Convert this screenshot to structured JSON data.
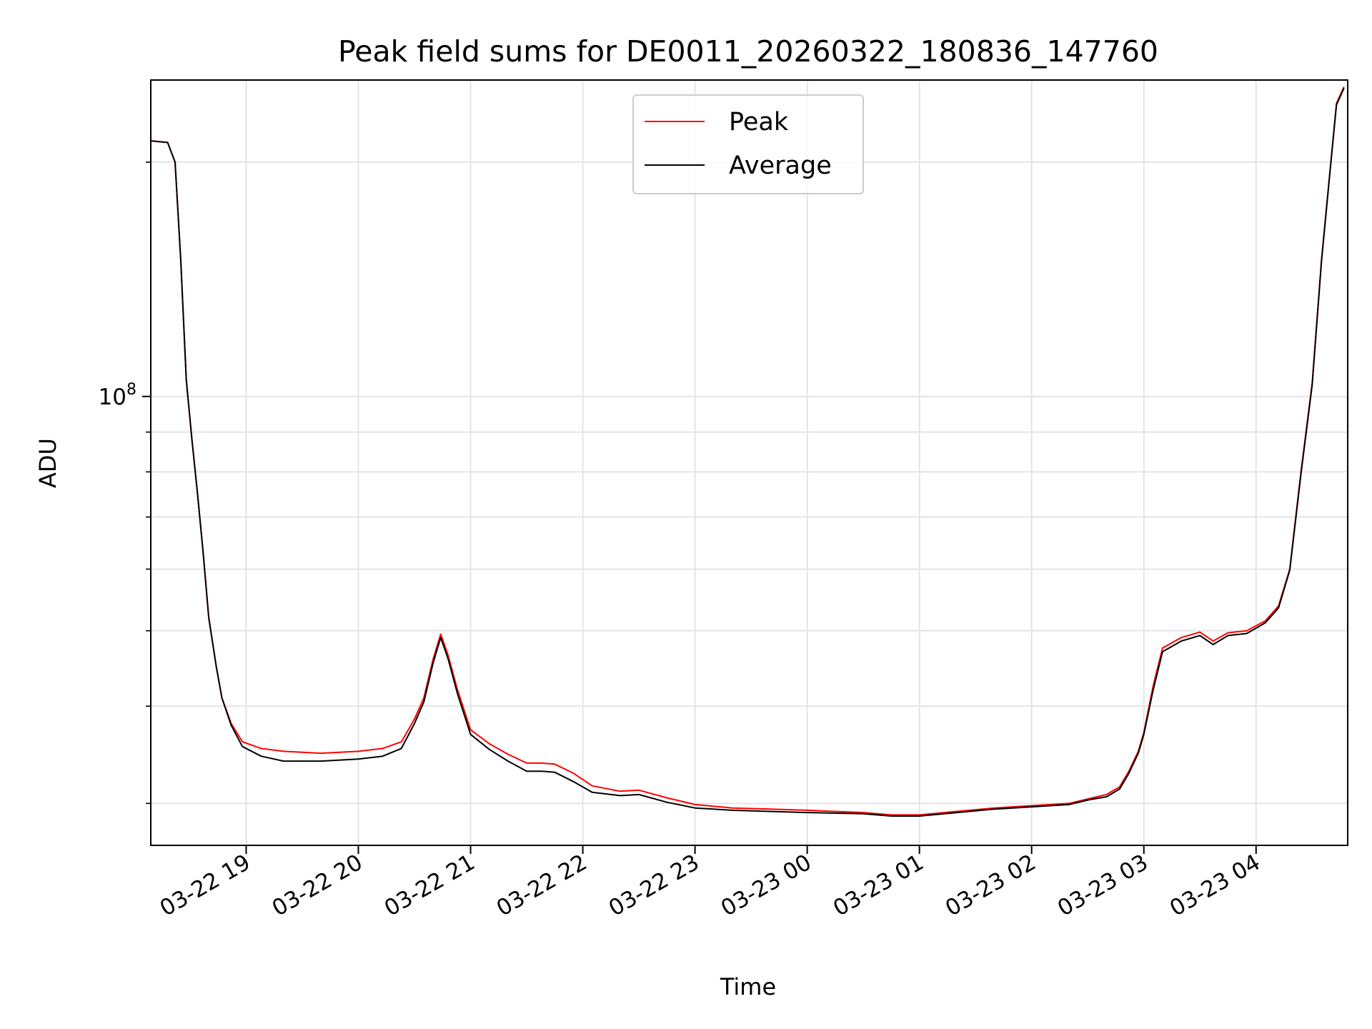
{
  "chart_data": {
    "type": "line",
    "title": "Peak field sums for DE0011_20260322_180836_147760",
    "xlabel": "Time",
    "ylabel": "ADU",
    "yscale": "log",
    "xlim": [
      "2026-03-22 18:09",
      "2026-03-23 04:49"
    ],
    "ylim": [
      26500000,
      255000000
    ],
    "grid": true,
    "legend_position": "upper center",
    "x_ticks": [
      "03-22 19",
      "03-22 20",
      "03-22 21",
      "03-22 22",
      "03-22 23",
      "03-23 00",
      "03-23 01",
      "03-23 02",
      "03-23 03",
      "03-23 04"
    ],
    "y_ticks": [
      {
        "value": 100000000,
        "base": "10",
        "exp": "8"
      }
    ],
    "colors": {
      "Peak": "#ff0000",
      "Average": "#000000"
    },
    "x": [
      "2026-03-22 18:09",
      "2026-03-22 18:18",
      "2026-03-22 18:22",
      "2026-03-22 18:25",
      "2026-03-22 18:28",
      "2026-03-22 18:31",
      "2026-03-22 18:34",
      "2026-03-22 18:37",
      "2026-03-22 18:40",
      "2026-03-22 18:44",
      "2026-03-22 18:47",
      "2026-03-22 18:52",
      "2026-03-22 18:58",
      "2026-03-22 19:08",
      "2026-03-22 19:20",
      "2026-03-22 19:40",
      "2026-03-22 20:00",
      "2026-03-22 20:13",
      "2026-03-22 20:23",
      "2026-03-22 20:30",
      "2026-03-22 20:35",
      "2026-03-22 20:40",
      "2026-03-22 20:44",
      "2026-03-22 20:48",
      "2026-03-22 20:53",
      "2026-03-22 21:00",
      "2026-03-22 21:10",
      "2026-03-22 21:20",
      "2026-03-22 21:30",
      "2026-03-22 21:38",
      "2026-03-22 21:45",
      "2026-03-22 21:55",
      "2026-03-22 22:05",
      "2026-03-22 22:20",
      "2026-03-22 22:30",
      "2026-03-22 22:45",
      "2026-03-22 23:00",
      "2026-03-22 23:20",
      "2026-03-22 23:40",
      "2026-03-23 00:00",
      "2026-03-23 00:30",
      "2026-03-23 00:45",
      "2026-03-23 01:00",
      "2026-03-23 01:20",
      "2026-03-23 01:40",
      "2026-03-23 02:00",
      "2026-03-23 02:20",
      "2026-03-23 02:30",
      "2026-03-23 02:40",
      "2026-03-23 02:47",
      "2026-03-23 02:52",
      "2026-03-23 02:57",
      "2026-03-23 03:00",
      "2026-03-23 03:05",
      "2026-03-23 03:10",
      "2026-03-23 03:20",
      "2026-03-23 03:30",
      "2026-03-23 03:37",
      "2026-03-23 03:45",
      "2026-03-23 03:55",
      "2026-03-23 04:05",
      "2026-03-23 04:12",
      "2026-03-23 04:18",
      "2026-03-23 04:24",
      "2026-03-23 04:30",
      "2026-03-23 04:35",
      "2026-03-23 04:40",
      "2026-03-23 04:43",
      "2026-03-23 04:47"
    ],
    "series": [
      {
        "name": "Peak",
        "values": [
          213000000,
          212000000,
          200000000,
          150000000,
          105000000,
          88000000,
          75000000,
          63000000,
          52000000,
          45000000,
          41000000,
          38000000,
          36000000,
          35300000,
          35000000,
          34800000,
          35000000,
          35300000,
          36000000,
          38500000,
          41000000,
          46000000,
          49500000,
          46500000,
          42000000,
          37300000,
          35800000,
          34700000,
          33800000,
          33800000,
          33700000,
          32800000,
          31600000,
          31100000,
          31200000,
          30500000,
          29900000,
          29600000,
          29500000,
          29400000,
          29200000,
          29000000,
          29000000,
          29300000,
          29600000,
          29800000,
          30000000,
          30400000,
          30800000,
          31500000,
          33000000,
          35000000,
          37000000,
          42500000,
          47500000,
          49000000,
          49800000,
          48500000,
          49700000,
          50000000,
          51500000,
          53800000,
          60000000,
          80000000,
          104000000,
          150000000,
          200000000,
          238000000,
          250000000
        ]
      },
      {
        "name": "Average",
        "values": [
          213000000,
          212000000,
          200000000,
          150000000,
          105000000,
          88000000,
          75000000,
          63000000,
          52000000,
          45000000,
          41000000,
          37800000,
          35500000,
          34500000,
          34000000,
          34000000,
          34200000,
          34500000,
          35300000,
          38000000,
          40500000,
          45500000,
          49000000,
          46000000,
          41500000,
          36800000,
          35200000,
          34000000,
          33000000,
          33000000,
          32900000,
          32000000,
          31000000,
          30700000,
          30800000,
          30100000,
          29600000,
          29400000,
          29300000,
          29200000,
          29100000,
          28900000,
          28900000,
          29200000,
          29500000,
          29700000,
          29900000,
          30300000,
          30600000,
          31300000,
          32800000,
          34800000,
          36800000,
          42000000,
          47000000,
          48500000,
          49300000,
          48000000,
          49300000,
          49600000,
          51200000,
          53500000,
          59800000,
          79500000,
          103500000,
          149500000,
          199500000,
          237000000,
          249000000
        ]
      }
    ]
  }
}
